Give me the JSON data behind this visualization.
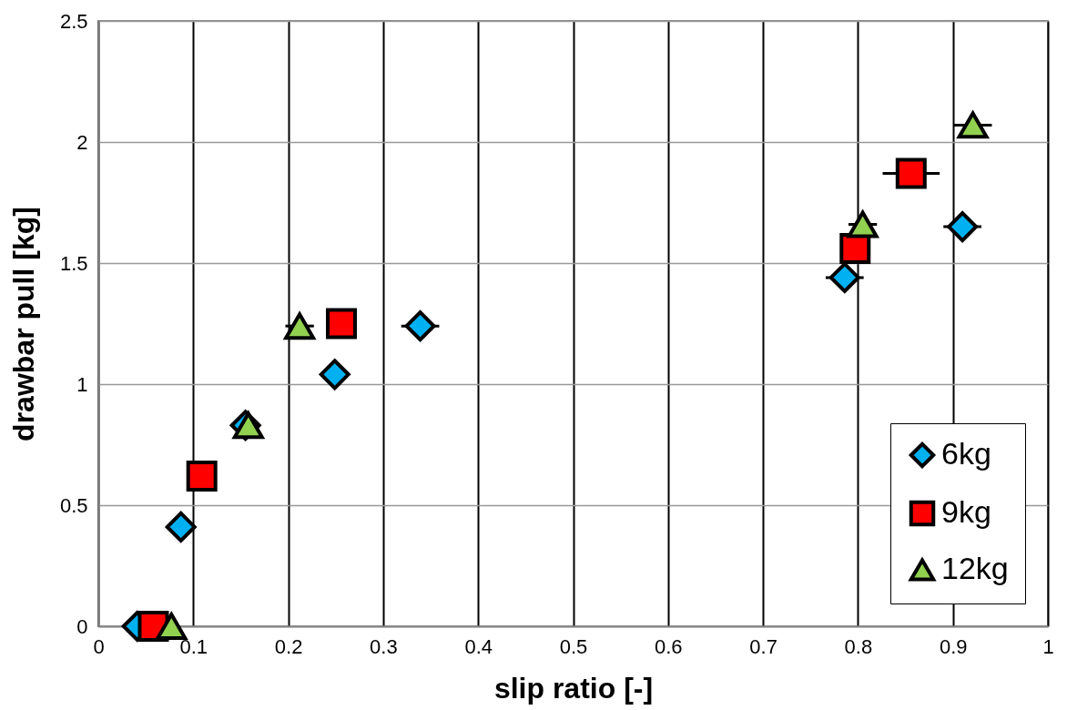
{
  "chart_data": {
    "type": "scatter",
    "xlabel": "slip ratio [-]",
    "ylabel": "drawbar pull [kg]",
    "xlim": [
      0,
      1
    ],
    "xticks": [
      0,
      0.1,
      0.2,
      0.3,
      0.4,
      0.5,
      0.6,
      0.7,
      0.8,
      0.9,
      1
    ],
    "ylim": [
      0,
      2.5
    ],
    "yticks": [
      0,
      0.5,
      1,
      1.5,
      2,
      2.5
    ],
    "grid": true,
    "legend": "bottom right",
    "series": [
      {
        "name": "6kg",
        "color": "#00b0f0",
        "marker": "diamond",
        "x": [
          0.041,
          0.087,
          0.155,
          0.249,
          0.339,
          0.786,
          0.91
        ],
        "values": [
          0,
          0.41,
          0.83,
          1.04,
          1.24,
          1.44,
          1.65
        ],
        "xerrors": [
          null,
          null,
          null,
          null,
          0.02,
          0.02,
          0.02
        ]
      },
      {
        "name": "9kg",
        "color": "#ff0000",
        "marker": "square",
        "x": [
          0.058,
          0.109,
          0.256,
          0.797,
          0.856
        ],
        "values": [
          0,
          0.62,
          1.25,
          1.56,
          1.87
        ],
        "xerrors": [
          null,
          null,
          null,
          null,
          0.03
        ]
      },
      {
        "name": "12kg",
        "color": "#92d050",
        "marker": "triangle",
        "x": [
          0.077,
          0.158,
          0.212,
          0.805,
          0.921
        ],
        "values": [
          0,
          0.83,
          1.24,
          1.66,
          2.07
        ],
        "xerrors": [
          null,
          null,
          0.015,
          0.015,
          0.02
        ]
      }
    ]
  }
}
